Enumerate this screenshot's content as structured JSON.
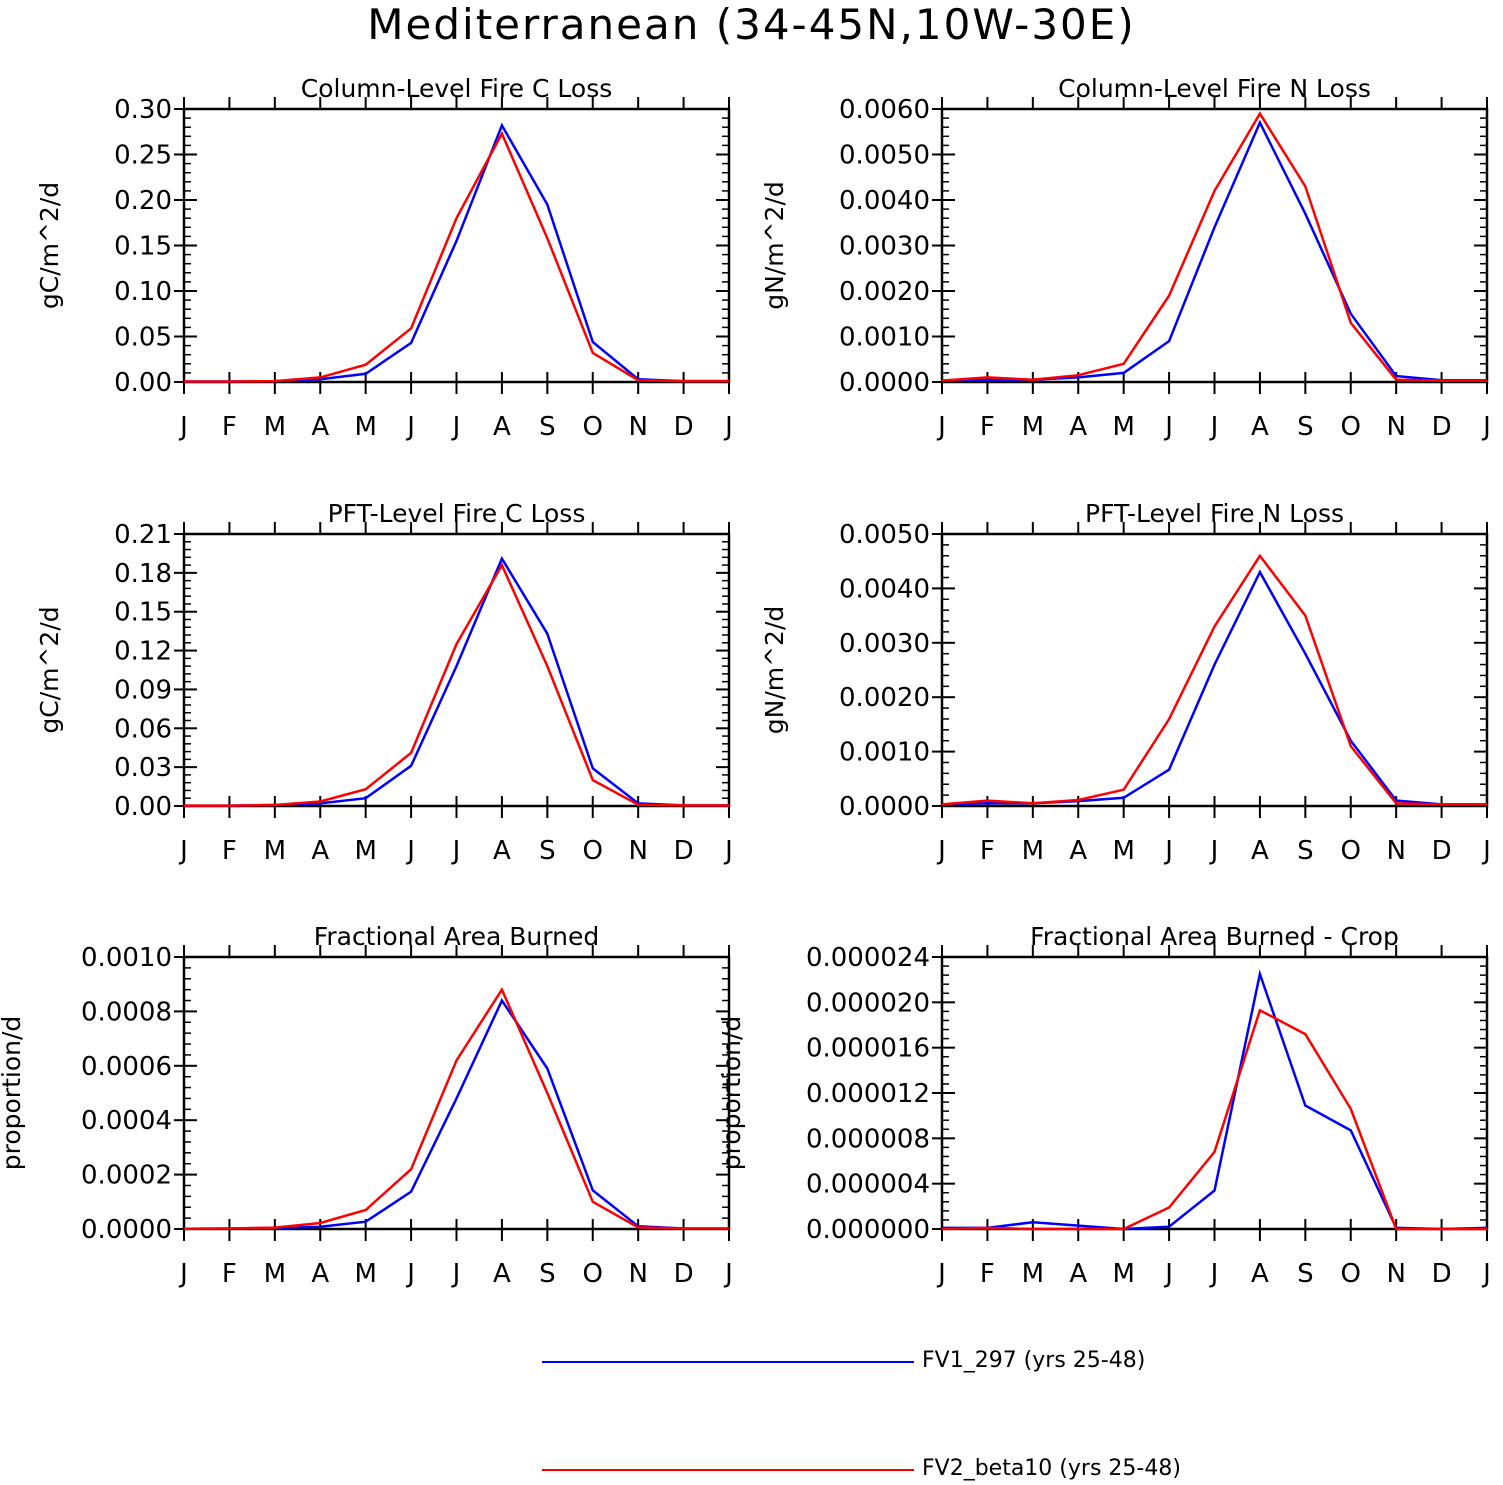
{
  "figure": {
    "title": "Mediterranean (34-45N,10W-30E)",
    "colors": {
      "series1": "#0000ff",
      "series2": "#ff0000"
    },
    "legend": [
      {
        "name": "FV1_297 (yrs 25-48)",
        "color": "#0000ff"
      },
      {
        "name": "FV2_beta10 (yrs 25-48)",
        "color": "#ff0000"
      }
    ]
  },
  "chart_data": [
    {
      "type": "line",
      "title": "Column-Level Fire C Loss",
      "ylabel": "gC/m^2/d",
      "categories": [
        "J",
        "F",
        "M",
        "A",
        "M",
        "J",
        "J",
        "A",
        "S",
        "O",
        "N",
        "D",
        "J"
      ],
      "ylim": [
        0,
        0.3
      ],
      "yticks": [
        "0.00",
        "0.05",
        "0.10",
        "0.15",
        "0.20",
        "0.25",
        "0.30"
      ],
      "series": [
        {
          "name": "FV1_297 (yrs 25-48)",
          "values": [
            0.0005,
            0.0005,
            0.001,
            0.003,
            0.009,
            0.043,
            0.155,
            0.282,
            0.195,
            0.044,
            0.003,
            0.001,
            0.001
          ]
        },
        {
          "name": "FV2_beta10 (yrs 25-48)",
          "values": [
            0.0005,
            0.0005,
            0.001,
            0.005,
            0.019,
            0.059,
            0.18,
            0.273,
            0.158,
            0.032,
            0.002,
            0.001,
            0.001
          ]
        }
      ]
    },
    {
      "type": "line",
      "title": "Column-Level Fire N Loss",
      "ylabel": "gN/m^2/d",
      "categories": [
        "J",
        "F",
        "M",
        "A",
        "M",
        "J",
        "J",
        "A",
        "S",
        "O",
        "N",
        "D",
        "J"
      ],
      "ylim": [
        0,
        0.006
      ],
      "yticks": [
        "0.0000",
        "0.0010",
        "0.0020",
        "0.0030",
        "0.0040",
        "0.0050",
        "0.0060"
      ],
      "series": [
        {
          "name": "FV1_297 (yrs 25-48)",
          "values": [
            3e-05,
            5e-05,
            5e-05,
            0.0001,
            0.0002,
            0.0009,
            0.0034,
            0.0057,
            0.0037,
            0.0015,
            0.00013,
            4e-05,
            4e-05
          ]
        },
        {
          "name": "FV2_beta10 (yrs 25-48)",
          "values": [
            3e-05,
            0.0001,
            5e-05,
            0.00015,
            0.0004,
            0.0019,
            0.0042,
            0.0059,
            0.0043,
            0.0013,
            5e-05,
            3e-05,
            3e-05
          ]
        }
      ]
    },
    {
      "type": "line",
      "title": "PFT-Level Fire C Loss",
      "ylabel": "gC/m^2/d",
      "categories": [
        "J",
        "F",
        "M",
        "A",
        "M",
        "J",
        "J",
        "A",
        "S",
        "O",
        "N",
        "D",
        "J"
      ],
      "ylim": [
        0,
        0.21
      ],
      "yticks": [
        "0.00",
        "0.03",
        "0.06",
        "0.09",
        "0.12",
        "0.15",
        "0.18",
        "0.21"
      ],
      "series": [
        {
          "name": "FV1_297 (yrs 25-48)",
          "values": [
            0.0003,
            0.0003,
            0.0008,
            0.002,
            0.006,
            0.031,
            0.108,
            0.191,
            0.133,
            0.029,
            0.002,
            0.0005,
            0.0005
          ]
        },
        {
          "name": "FV2_beta10 (yrs 25-48)",
          "values": [
            0.0003,
            0.0003,
            0.0008,
            0.0035,
            0.013,
            0.041,
            0.125,
            0.186,
            0.108,
            0.02,
            0.001,
            0.0005,
            0.0005
          ]
        }
      ]
    },
    {
      "type": "line",
      "title": "PFT-Level Fire N Loss",
      "ylabel": "gN/m^2/d",
      "categories": [
        "J",
        "F",
        "M",
        "A",
        "M",
        "J",
        "J",
        "A",
        "S",
        "O",
        "N",
        "D",
        "J"
      ],
      "ylim": [
        0,
        0.005
      ],
      "yticks": [
        "0.0000",
        "0.0010",
        "0.0020",
        "0.0030",
        "0.0040",
        "0.0050"
      ],
      "series": [
        {
          "name": "FV1_297 (yrs 25-48)",
          "values": [
            3e-05,
            5e-05,
            5e-05,
            9e-05,
            0.00015,
            0.00067,
            0.0026,
            0.0043,
            0.0028,
            0.0012,
            0.0001,
            3e-05,
            3e-05
          ]
        },
        {
          "name": "FV2_beta10 (yrs 25-48)",
          "values": [
            3e-05,
            0.0001,
            5e-05,
            0.00011,
            0.0003,
            0.0016,
            0.0033,
            0.0046,
            0.0035,
            0.0011,
            5e-05,
            3e-05,
            3e-05
          ]
        }
      ]
    },
    {
      "type": "line",
      "title": "Fractional Area Burned",
      "ylabel": "proportion/d",
      "categories": [
        "J",
        "F",
        "M",
        "A",
        "M",
        "J",
        "J",
        "A",
        "S",
        "O",
        "N",
        "D",
        "J"
      ],
      "ylim": [
        0,
        0.001
      ],
      "yticks": [
        "0.0000",
        "0.0002",
        "0.0004",
        "0.0006",
        "0.0008",
        "0.0010"
      ],
      "series": [
        {
          "name": "FV1_297 (yrs 25-48)",
          "values": [
            1e-06,
            2e-06,
            4e-06,
            8e-06,
            2.7e-05,
            0.000137,
            0.00048,
            0.00084,
            0.00059,
            0.000142,
            1e-05,
            2e-06,
            2e-06
          ]
        },
        {
          "name": "FV2_beta10 (yrs 25-48)",
          "values": [
            1e-06,
            2e-06,
            5e-06,
            2.2e-05,
            7e-05,
            0.00022,
            0.00062,
            0.00088,
            0.0005,
            0.0001,
            6e-06,
            2e-06,
            2e-06
          ]
        }
      ]
    },
    {
      "type": "line",
      "title": "Fractional Area Burned - Crop",
      "ylabel": "proportion/d",
      "categories": [
        "J",
        "F",
        "M",
        "A",
        "M",
        "J",
        "J",
        "A",
        "S",
        "O",
        "N",
        "D",
        "J"
      ],
      "ylim": [
        0,
        2.4e-05
      ],
      "yticks": [
        "0.000000",
        "0.000004",
        "0.000008",
        "0.000012",
        "0.000016",
        "0.000020",
        "0.000024"
      ],
      "series": [
        {
          "name": "FV1_297 (yrs 25-48)",
          "values": [
            1e-07,
            1e-07,
            6e-07,
            3e-07,
            0.0,
            2e-07,
            3.4e-06,
            2.25e-05,
            1.09e-05,
            8.7e-06,
            1e-07,
            0.0,
            1e-07
          ]
        },
        {
          "name": "FV2_beta10 (yrs 25-48)",
          "values": [
            0.0,
            1e-07,
            0.0,
            0.0,
            0.0,
            1.9e-06,
            6.8e-06,
            1.93e-05,
            1.72e-05,
            1.06e-05,
            0.0,
            0.0,
            0.0
          ]
        }
      ]
    }
  ]
}
